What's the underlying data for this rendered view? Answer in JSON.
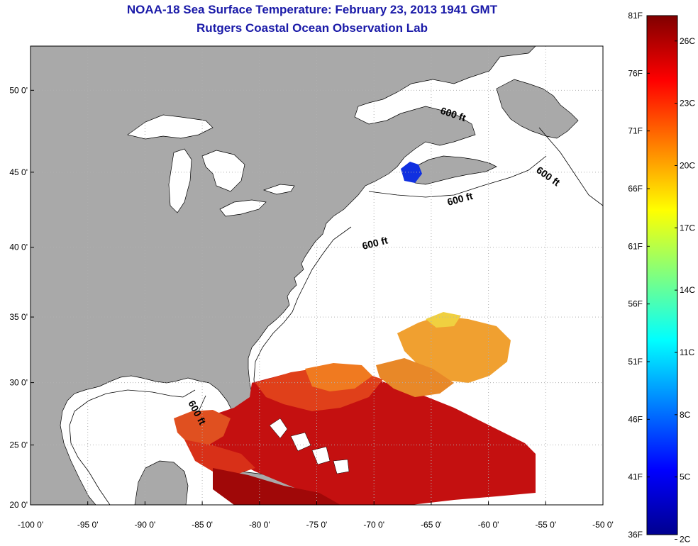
{
  "titles": {
    "line1": "NOAA-18 Sea Surface Temperature:  February 23, 2013 1941 GMT",
    "line2": "Rutgers Coastal Ocean Observation Lab"
  },
  "map": {
    "lon_range": [
      -100,
      -50
    ],
    "lat_range": [
      20,
      52.5
    ],
    "lon_ticks": [
      "-100 0'",
      "-95 0'",
      "-90 0'",
      "-85 0'",
      "-80 0'",
      "-75 0'",
      "-70 0'",
      "-65 0'",
      "-60 0'",
      "-55 0'",
      "-50 0'"
    ],
    "lat_ticks": [
      "20 0'",
      "25 0'",
      "30 0'",
      "35 0'",
      "40 0'",
      "45 0'",
      "50 0'"
    ],
    "contour_labels": [
      "600 ft",
      "600 ft",
      "600 ft",
      "600 ft",
      "600 ft"
    ],
    "colors": {
      "land": "#a9a9a9",
      "ocean": "#ffffff",
      "grid": "#b0b0b0"
    }
  },
  "colorbar": {
    "fahrenheit_labels": [
      "81F",
      "76F",
      "71F",
      "66F",
      "61F",
      "56F",
      "51F",
      "46F",
      "41F",
      "36F"
    ],
    "celsius_labels": [
      "26C",
      "23C",
      "20C",
      "17C",
      "14C",
      "11C",
      "8C",
      "5C",
      "2C"
    ],
    "colormap": "jet"
  }
}
